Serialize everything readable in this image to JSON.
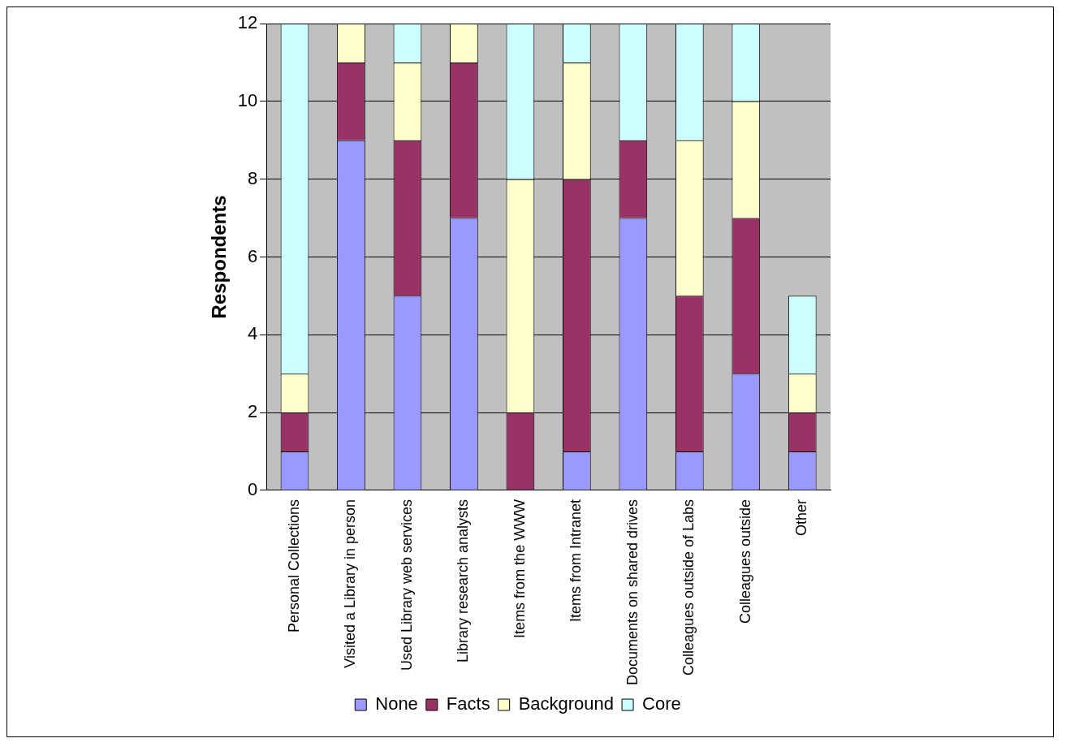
{
  "chart_data": {
    "type": "bar",
    "stacked": true,
    "ylabel": "Respondents",
    "categories": [
      "Personal Collections",
      "Visited a Library in person",
      "Used Library web services",
      "Library research analysts",
      "Items from the WWW",
      "Items from Intranet",
      "Documents on shared drives",
      "Colleagues outside of Labs",
      "Colleagues outside",
      "Other"
    ],
    "series": [
      {
        "name": "None",
        "color": "#9999ff",
        "values": [
          1,
          9,
          5,
          7,
          0,
          1,
          7,
          1,
          3,
          1
        ]
      },
      {
        "name": "Facts",
        "color": "#993366",
        "values": [
          1,
          2,
          4,
          4,
          2,
          7,
          2,
          4,
          4,
          1
        ]
      },
      {
        "name": "Background",
        "color": "#ffffcc",
        "values": [
          1,
          1,
          2,
          1,
          6,
          3,
          0,
          4,
          3,
          1
        ]
      },
      {
        "name": "Core",
        "color": "#ccffff",
        "values": [
          9,
          0,
          1,
          0,
          4,
          1,
          3,
          3,
          2,
          2
        ]
      }
    ],
    "ylim": [
      0,
      12
    ],
    "yticks": [
      0,
      2,
      4,
      6,
      8,
      10,
      12
    ],
    "grid": "y",
    "legend": "bottom"
  }
}
